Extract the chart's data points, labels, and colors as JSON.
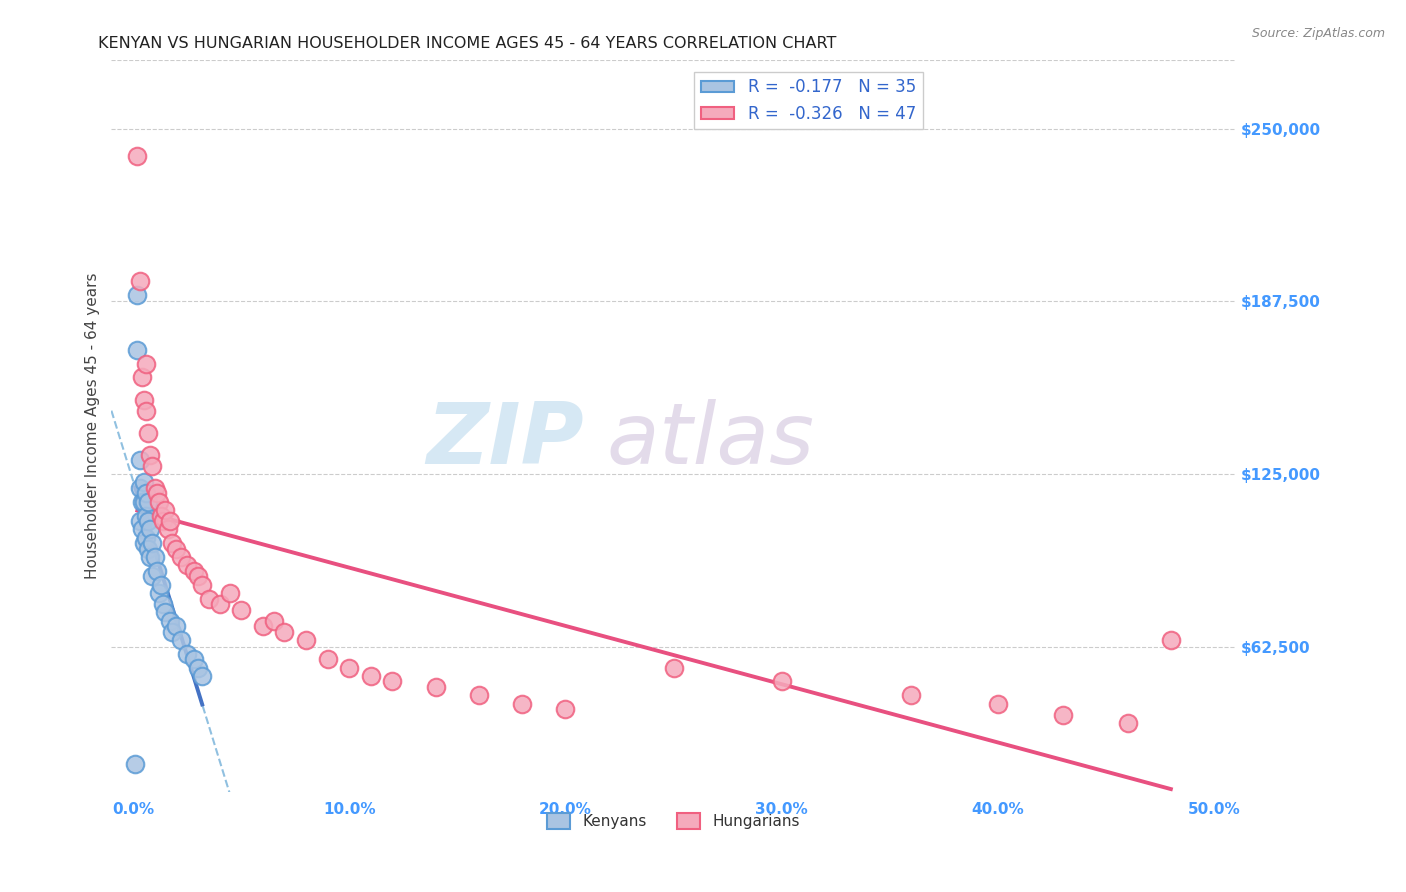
{
  "title": "KENYAN VS HUNGARIAN HOUSEHOLDER INCOME AGES 45 - 64 YEARS CORRELATION CHART",
  "source": "Source: ZipAtlas.com",
  "ylabel": "Householder Income Ages 45 - 64 years",
  "xlabel_ticks": [
    "0.0%",
    "10.0%",
    "20.0%",
    "30.0%",
    "40.0%",
    "50.0%"
  ],
  "ytick_labels": [
    "$62,500",
    "$125,000",
    "$187,500",
    "$250,000"
  ],
  "ytick_values": [
    62500,
    125000,
    187500,
    250000
  ],
  "ytick_right_labels": [
    "$62,500",
    "$125,000",
    "$187,500",
    "$250,000"
  ],
  "xlim": [
    -0.01,
    0.51
  ],
  "ylim": [
    10000,
    275000
  ],
  "kenyan_R": -0.177,
  "kenyan_N": 35,
  "hungarian_R": -0.326,
  "hungarian_N": 47,
  "kenyan_color": "#aac4e2",
  "hungarian_color": "#f5aabc",
  "kenyan_edge_color": "#5b9bd5",
  "hungarian_edge_color": "#f06080",
  "kenyan_line_color": "#4472c4",
  "hungarian_line_color": "#e85080",
  "kenyan_dash_color": "#90c0e0",
  "background_color": "#ffffff",
  "kenyan_x": [
    0.001,
    0.002,
    0.002,
    0.003,
    0.003,
    0.003,
    0.004,
    0.004,
    0.005,
    0.005,
    0.005,
    0.006,
    0.006,
    0.006,
    0.007,
    0.007,
    0.007,
    0.008,
    0.008,
    0.009,
    0.009,
    0.01,
    0.011,
    0.012,
    0.013,
    0.014,
    0.015,
    0.017,
    0.018,
    0.02,
    0.022,
    0.025,
    0.028,
    0.03,
    0.032
  ],
  "kenyan_y": [
    20000,
    190000,
    170000,
    130000,
    120000,
    108000,
    115000,
    105000,
    122000,
    115000,
    100000,
    118000,
    110000,
    102000,
    115000,
    108000,
    98000,
    105000,
    95000,
    100000,
    88000,
    95000,
    90000,
    82000,
    85000,
    78000,
    75000,
    72000,
    68000,
    70000,
    65000,
    60000,
    58000,
    55000,
    52000
  ],
  "hungarian_x": [
    0.002,
    0.003,
    0.004,
    0.005,
    0.006,
    0.006,
    0.007,
    0.008,
    0.009,
    0.01,
    0.011,
    0.012,
    0.013,
    0.014,
    0.015,
    0.016,
    0.017,
    0.018,
    0.02,
    0.022,
    0.025,
    0.028,
    0.03,
    0.032,
    0.035,
    0.04,
    0.045,
    0.05,
    0.06,
    0.065,
    0.07,
    0.08,
    0.09,
    0.1,
    0.11,
    0.12,
    0.14,
    0.16,
    0.18,
    0.2,
    0.25,
    0.3,
    0.36,
    0.4,
    0.43,
    0.46,
    0.48
  ],
  "hungarian_y": [
    240000,
    195000,
    160000,
    152000,
    148000,
    165000,
    140000,
    132000,
    128000,
    120000,
    118000,
    115000,
    110000,
    108000,
    112000,
    105000,
    108000,
    100000,
    98000,
    95000,
    92000,
    90000,
    88000,
    85000,
    80000,
    78000,
    82000,
    76000,
    70000,
    72000,
    68000,
    65000,
    58000,
    55000,
    52000,
    50000,
    48000,
    45000,
    42000,
    40000,
    55000,
    50000,
    45000,
    42000,
    38000,
    35000,
    65000
  ]
}
